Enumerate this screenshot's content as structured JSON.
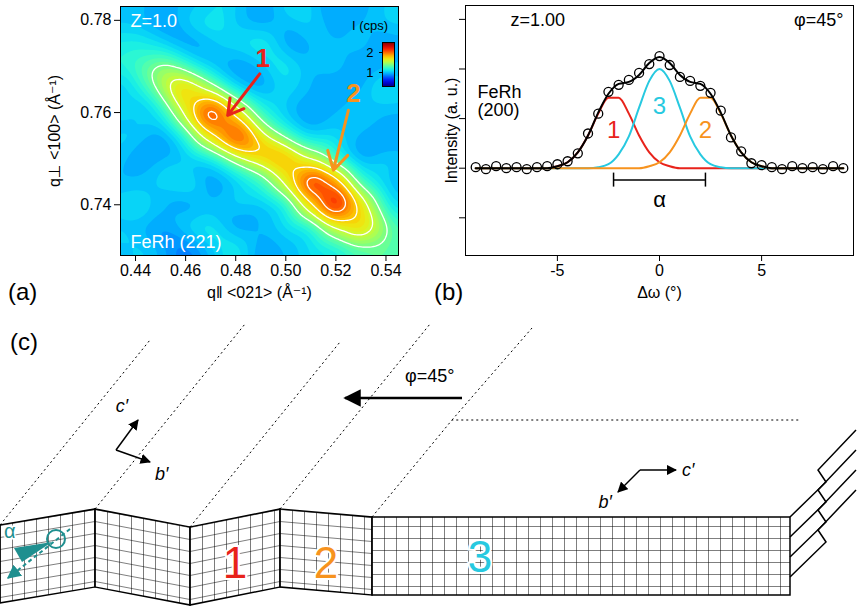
{
  "chart_data": [
    {
      "type": "contour",
      "panel": "(a)",
      "condition": "Z=1.0",
      "reflection": "FeRh (221)",
      "xlabel": "q‖ <021> (Å⁻¹)",
      "ylabel": "q⊥ <100> (Å⁻¹)",
      "xlim": [
        0.434,
        0.545
      ],
      "ylim": [
        0.729,
        0.783
      ],
      "xticks": [
        0.44,
        0.46,
        0.48,
        {
          "value": 0.5,
          "label": "0.50"
        },
        0.52,
        0.54
      ],
      "yticks": [
        0.74,
        0.76,
        0.78
      ],
      "x": [
        0.43,
        0.44,
        0.45,
        0.46,
        0.47,
        0.48,
        0.49,
        0.5,
        0.51,
        0.52,
        0.53,
        0.54,
        0.55
      ],
      "y": [
        0.725,
        0.73,
        0.735,
        0.74,
        0.745,
        0.75,
        0.755,
        0.76,
        0.765,
        0.77,
        0.775,
        0.78,
        0.785
      ],
      "values": [
        [
          1.0,
          0.9,
          1.1,
          1.0,
          0.9,
          1.1,
          1.0,
          0.9,
          1.0,
          1.1,
          1.0,
          1.1,
          1.1
        ],
        [
          0.9,
          1.1,
          1.0,
          0.8,
          1.0,
          1.2,
          0.9,
          1.0,
          1.1,
          1.1,
          1.3,
          1.4,
          1.2
        ],
        [
          1.1,
          1.0,
          0.9,
          1.1,
          1.2,
          0.9,
          1.0,
          1.1,
          1.1,
          1.6,
          1.9,
          1.5,
          1.0
        ],
        [
          1.0,
          1.2,
          1.0,
          0.9,
          1.0,
          1.1,
          1.0,
          1.1,
          1.8,
          2.5,
          1.8,
          1.2,
          0.9
        ],
        [
          0.9,
          1.0,
          1.1,
          1.2,
          0.9,
          1.0,
          1.2,
          1.7,
          2.4,
          2.0,
          1.2,
          1.0,
          1.1
        ],
        [
          1.1,
          0.9,
          1.0,
          1.0,
          1.1,
          1.5,
          1.8,
          2.0,
          1.6,
          1.2,
          0.9,
          1.1,
          1.0
        ],
        [
          1.0,
          1.1,
          0.9,
          1.2,
          1.8,
          2.3,
          1.7,
          1.3,
          1.0,
          1.1,
          1.0,
          0.9,
          1.0
        ],
        [
          1.2,
          1.0,
          1.1,
          1.7,
          2.4,
          1.8,
          1.2,
          1.0,
          0.9,
          1.0,
          1.1,
          1.0,
          0.9
        ],
        [
          0.9,
          1.1,
          1.5,
          1.9,
          1.6,
          1.1,
          0.9,
          1.1,
          1.0,
          0.9,
          1.0,
          1.2,
          1.0
        ],
        [
          1.1,
          1.3,
          1.5,
          1.3,
          1.0,
          0.9,
          1.0,
          1.2,
          1.0,
          1.1,
          0.9,
          1.0,
          1.1
        ],
        [
          1.1,
          1.2,
          1.1,
          0.9,
          1.0,
          1.1,
          1.2,
          0.9,
          1.0,
          1.0,
          1.1,
          0.9,
          1.0
        ],
        [
          1.0,
          1.0,
          0.9,
          1.1,
          1.2,
          1.0,
          0.9,
          1.0,
          1.1,
          0.9,
          1.0,
          1.1,
          1.0
        ],
        [
          0.9,
          1.1,
          1.0,
          1.0,
          0.9,
          1.1,
          1.0,
          1.2,
          1.0,
          1.0,
          0.9,
          1.0,
          1.1
        ]
      ],
      "contour_levels": [
        1.4,
        1.6,
        1.8,
        2.0,
        2.2
      ],
      "colorbar": {
        "label": "I (cps)",
        "range": [
          0.3,
          2.5
        ],
        "ticks": [
          1,
          2
        ]
      },
      "annotations": [
        {
          "text": "1",
          "x": 0.4908,
          "y": 0.7716,
          "x1": 0.4896,
          "y1": 0.7684,
          "x2": 0.4768,
          "y2": 0.7594,
          "color": "#e8231b"
        },
        {
          "text": "2",
          "x": 0.527,
          "y": 0.764,
          "x1": 0.525,
          "y1": 0.7605,
          "x2": 0.519,
          "y2": 0.7475,
          "color": "#f7931e"
        }
      ]
    },
    {
      "type": "line",
      "panel": "(b)",
      "condition": "z=1.00",
      "angle": "φ=45°",
      "reflection": "FeRh (200)",
      "xlabel": "Δω (°)",
      "ylabel": "Intensity (a. u.)",
      "xlim": [
        -9.5,
        9.5
      ],
      "ylim": [
        -0.88,
        1.64
      ],
      "xticks": [
        -5,
        0,
        5
      ],
      "yticks": [
        -0.5,
        0,
        0.5,
        1,
        1.5
      ],
      "tick_labels": "x",
      "x": [
        -9,
        -8.5,
        -8,
        -7.5,
        -7,
        -6.5,
        -6,
        -5.5,
        -5,
        -4.5,
        -4,
        -3.5,
        -3,
        -2.5,
        -2,
        -1.5,
        -1,
        -0.5,
        0,
        0.5,
        1,
        1.5,
        2,
        2.5,
        3,
        3.5,
        4,
        4.5,
        5,
        5.5,
        6,
        6.5,
        7,
        7.5,
        8,
        8.5,
        9
      ],
      "series": [
        {
          "name": "1",
          "color": "#e8231b",
          "label_position": [
            -2.25,
            0.38
          ],
          "values": [
            0,
            0,
            0,
            0,
            0,
            0,
            0,
            0,
            0.02,
            0.06,
            0.16,
            0.33,
            0.55,
            0.71,
            0.71,
            0.55,
            0.33,
            0.16,
            0.06,
            0.02,
            0,
            0,
            0,
            0,
            0,
            0,
            0,
            0,
            0,
            0,
            0,
            0,
            0,
            0,
            0,
            0,
            0
          ]
        },
        {
          "name": "3",
          "color": "#27c9e0",
          "label_position": [
            0,
            0.62
          ],
          "values": [
            0,
            0,
            0,
            0,
            0,
            0,
            0,
            0,
            0,
            0,
            0,
            0,
            0.01,
            0.04,
            0.14,
            0.32,
            0.61,
            0.88,
            1,
            0.88,
            0.61,
            0.32,
            0.14,
            0.04,
            0.01,
            0,
            0,
            0,
            0,
            0,
            0,
            0,
            0,
            0,
            0,
            0,
            0
          ]
        },
        {
          "name": "2",
          "color": "#f7931e",
          "label_position": [
            2.25,
            0.38
          ],
          "values": [
            0,
            0,
            0,
            0,
            0,
            0,
            0,
            0,
            0,
            0,
            0,
            0,
            0,
            0,
            0,
            0,
            0,
            0.02,
            0.06,
            0.16,
            0.33,
            0.55,
            0.71,
            0.71,
            0.55,
            0.33,
            0.16,
            0.06,
            0.02,
            0,
            0,
            0,
            0,
            0,
            0,
            0,
            0
          ]
        },
        {
          "color": "#000000",
          "values": [
            0,
            0,
            0,
            0,
            0,
            0,
            0,
            0,
            0.02,
            0.06,
            0.16,
            0.33,
            0.56,
            0.75,
            0.85,
            0.87,
            0.94,
            1.06,
            1.12,
            1.06,
            0.94,
            0.87,
            0.85,
            0.75,
            0.56,
            0.33,
            0.16,
            0.06,
            0.02,
            0,
            0,
            0,
            0,
            0,
            0,
            0,
            0
          ]
        },
        {
          "type": "scatter",
          "marker": "open_circle",
          "color": "#000000",
          "values": [
            0.01,
            -0.01,
            0.02,
            0,
            0.01,
            -0.01,
            0.01,
            0.02,
            0.04,
            0.07,
            0.15,
            0.35,
            0.55,
            0.77,
            0.84,
            0.89,
            0.96,
            1.05,
            1.13,
            1.04,
            0.92,
            0.88,
            0.83,
            0.76,
            0.58,
            0.31,
            0.17,
            0.05,
            0.03,
            0.01,
            -0.01,
            0.02,
            0,
            0.01,
            -0.01,
            0.02,
            0
          ]
        }
      ],
      "bracket": {
        "text": "α",
        "x1": -2.25,
        "x2": 2.25,
        "y": -0.12
      }
    }
  ],
  "diagram": {
    "panel": "(c)",
    "angle": "φ=45°",
    "tilt": "α",
    "axes": [
      "c′",
      "b′"
    ],
    "domains": [
      {
        "label": "1",
        "color": "#e8231b"
      },
      {
        "label": "2",
        "color": "#f7931e"
      },
      {
        "label": "3",
        "color": "#27c9e0"
      }
    ]
  }
}
